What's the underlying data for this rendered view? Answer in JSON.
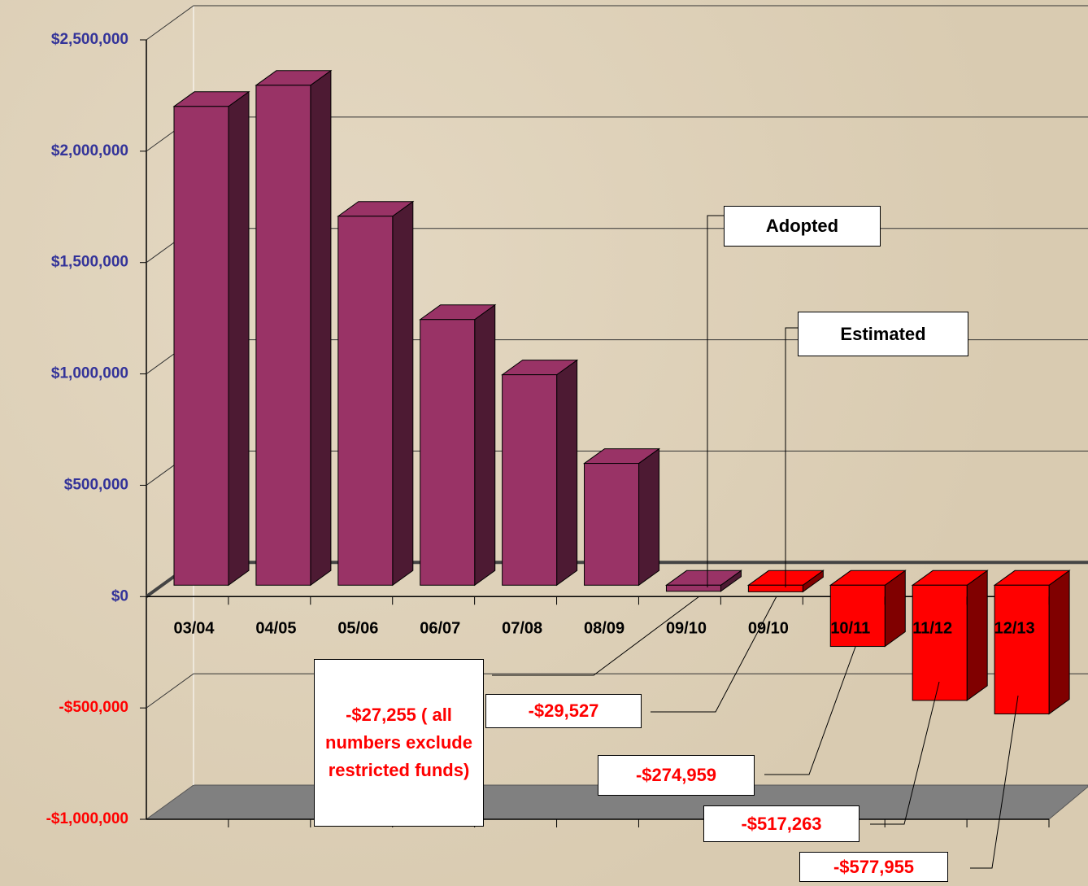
{
  "chart_data": {
    "type": "bar3d",
    "categories": [
      "03/04",
      "04/05",
      "05/06",
      "06/07",
      "07/08",
      "08/09",
      "09/10",
      "09/10",
      "10/11",
      "11/12",
      "12/13"
    ],
    "values": [
      2150000,
      2245000,
      1657000,
      1193000,
      945000,
      547000,
      -27255,
      -29527,
      -274959,
      -517263,
      -577955
    ],
    "value_labels": [
      null,
      null,
      null,
      null,
      null,
      null,
      "-$27,255 ( all numbers exclude restricted funds)",
      "-$29,527",
      "-$274,959",
      "-$517,263",
      "-$577,955"
    ],
    "colors": [
      "#993366",
      "#993366",
      "#993366",
      "#993366",
      "#993366",
      "#993366",
      "#993366",
      "#ff0000",
      "#ff0000",
      "#ff0000",
      "#ff0000"
    ],
    "annotations": [
      "Adopted",
      "Estimated"
    ],
    "ylim": [
      -1000000,
      2500000
    ],
    "yticks": [
      {
        "value": -1000000,
        "label": "-$1,000,000"
      },
      {
        "value": -500000,
        "label": "-$500,000"
      },
      {
        "value": 0,
        "label": "$0"
      },
      {
        "value": 500000,
        "label": "$500,000"
      },
      {
        "value": 1000000,
        "label": "$1,000,000"
      },
      {
        "value": 1500000,
        "label": "$1,500,000"
      },
      {
        "value": 2000000,
        "label": "$2,000,000"
      },
      {
        "value": 2500000,
        "label": "$2,500,000"
      }
    ],
    "grid": true
  }
}
